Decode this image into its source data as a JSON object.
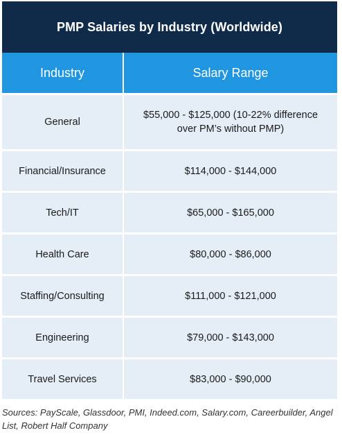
{
  "title": "PMP Salaries by Industry (Worldwide)",
  "columns": [
    "Industry",
    "Salary Range"
  ],
  "rows": [
    {
      "industry": "General",
      "salary_line1": "$55,000 - $125,000 (10-22% difference",
      "salary_line2": "over PM’s without PMP)"
    },
    {
      "industry": "Financial/Insurance",
      "salary": "$114,000 - $144,000"
    },
    {
      "industry": "Tech/IT",
      "salary": "$65,000 - $165,000"
    },
    {
      "industry": "Health Care",
      "salary": "$80,000 - $86,000"
    },
    {
      "industry": "Staffing/Consulting",
      "salary": "$111,000 - $121,000"
    },
    {
      "industry": "Engineering",
      "salary": "$79,000 - $143,000"
    },
    {
      "industry": "Travel Services",
      "salary": "$83,000 - $90,000"
    }
  ],
  "sources": "Sources: PayScale, Glassdoor, PMI, Indeed.com, Salary.com, Careerbuilder, Angel List, Robert Half Company",
  "colors": {
    "title_bg": "#102a4a",
    "header_bg": "#2196e0",
    "row_bg": "#e5eef7"
  }
}
